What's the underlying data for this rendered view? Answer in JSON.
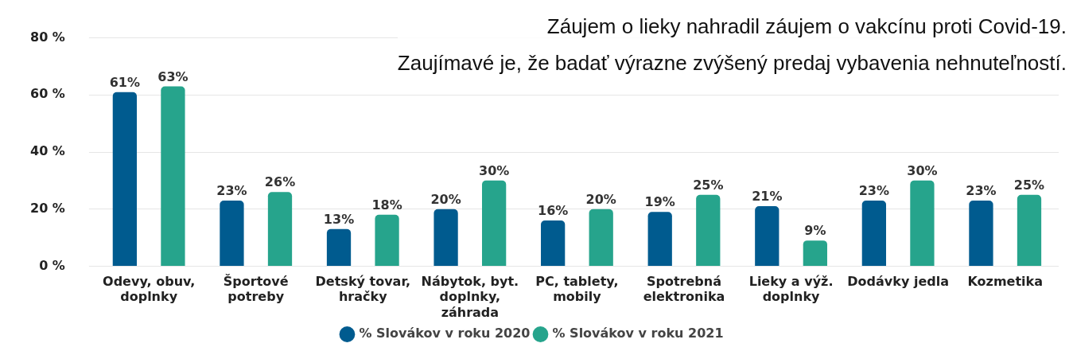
{
  "chart_data": {
    "type": "bar",
    "annotations": [
      "Záujem o lieky nahradil záujem o vakcínu proti Covid-19.",
      "Zaujímavé je, že badať výrazne zvýšený predaj vybavenia nehnuteľností."
    ],
    "categories": [
      "Odevy, obuv, doplnky",
      "Športové potreby",
      "Detský tovar, hračky",
      "Nábytok, byt. doplnky, záhrada",
      "PC, tablety, mobily",
      "Spotrebná elektronika",
      "Lieky a výž. doplnky",
      "Dodávky jedla",
      "Kozmetika"
    ],
    "series": [
      {
        "name": "% Slovákov v roku 2020",
        "color": "#005b8f",
        "values": [
          61,
          23,
          13,
          20,
          16,
          19,
          21,
          23,
          23
        ],
        "value_labels": [
          "61%",
          "23%",
          "13%",
          "20%",
          "16%",
          "19%",
          "21%",
          "23%",
          "23%"
        ]
      },
      {
        "name": "% Slovákov v roku 2021",
        "color": "#26a48c",
        "values": [
          63,
          26,
          18,
          30,
          20,
          25,
          9,
          30,
          25
        ],
        "value_labels": [
          "63%",
          "26%",
          "18%",
          "30%",
          "20%",
          "25%",
          "9%",
          "30%",
          "25%"
        ]
      }
    ],
    "ylim": [
      0,
      80
    ],
    "yticks": [
      {
        "value": 0,
        "label": "0 %"
      },
      {
        "value": 20,
        "label": "20 %"
      },
      {
        "value": 40,
        "label": "40 %"
      },
      {
        "value": 60,
        "label": "60 %"
      },
      {
        "value": 80,
        "label": "80 %"
      }
    ],
    "grid": "y",
    "legend": "bottom"
  }
}
